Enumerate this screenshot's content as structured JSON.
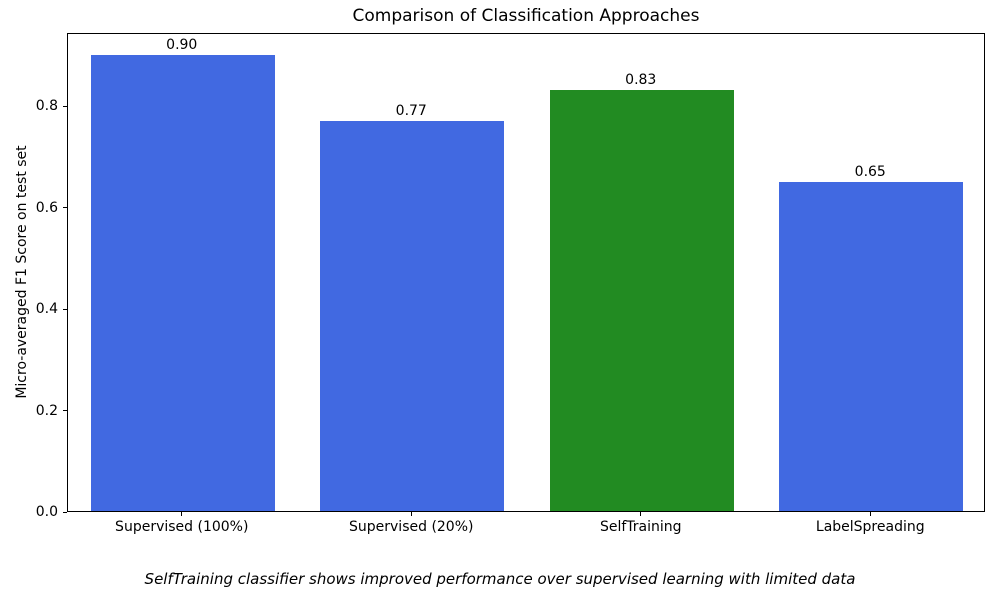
{
  "chart_data": {
    "type": "bar",
    "title": "Comparison of Classification Approaches",
    "xlabel": "",
    "ylabel": "Micro-averaged F1 Score on test set",
    "categories": [
      "Supervised (100%)",
      "Supervised (20%)",
      "SelfTraining",
      "LabelSpreading"
    ],
    "values": [
      0.9,
      0.77,
      0.83,
      0.65
    ],
    "value_labels": [
      "0.90",
      "0.77",
      "0.83",
      "0.65"
    ],
    "bar_colors": [
      "#4169e1",
      "#4169e1",
      "#228b22",
      "#4169e1"
    ],
    "ylim": [
      0,
      0.945
    ],
    "yticks": [
      0.0,
      0.2,
      0.4,
      0.6,
      0.8
    ],
    "ytick_labels": [
      "0.0",
      "0.2",
      "0.4",
      "0.6",
      "0.8"
    ],
    "grid": false,
    "legend": "none",
    "caption": "SelfTraining classifier shows improved performance over supervised learning with limited data"
  }
}
